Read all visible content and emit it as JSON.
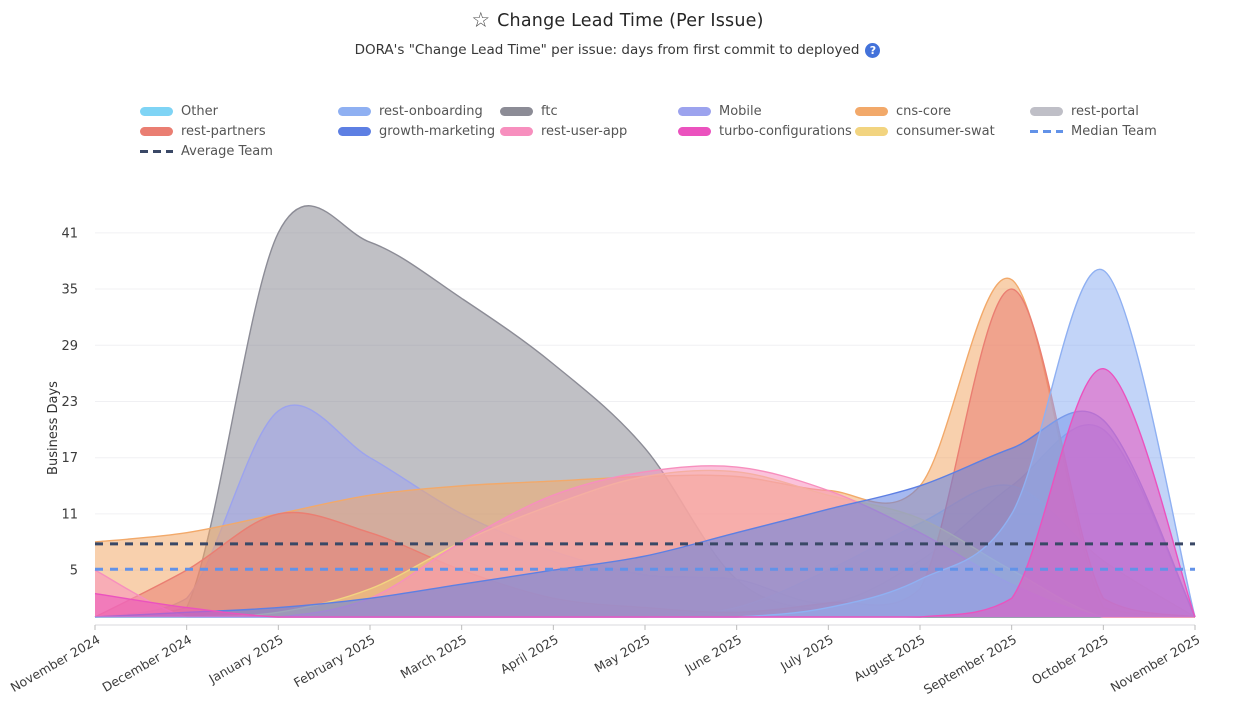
{
  "header": {
    "star_icon": "☆",
    "title": "Change Lead Time (Per Issue)",
    "subtitle": "DORA's \"Change Lead Time\" per issue: days from first commit to deployed",
    "help_icon": "?"
  },
  "legend": {
    "items": [
      {
        "label": "Other",
        "color": "#7FD4F5",
        "marker": "swatch"
      },
      {
        "label": "rest-onboarding",
        "color": "#8FB0F2",
        "marker": "swatch"
      },
      {
        "label": "ftc",
        "color": "#8C8C96",
        "marker": "swatch"
      },
      {
        "label": "Mobile",
        "color": "#9CA3EE",
        "marker": "swatch"
      },
      {
        "label": "cns-core",
        "color": "#F2A96A",
        "marker": "swatch"
      },
      {
        "label": "rest-portal",
        "color": "#BFBFC7",
        "marker": "swatch"
      },
      {
        "label": "rest-partners",
        "color": "#EA7E72",
        "marker": "swatch"
      },
      {
        "label": "growth-marketing",
        "color": "#5D7FE3",
        "marker": "swatch"
      },
      {
        "label": "rest-user-app",
        "color": "#F78FBE",
        "marker": "swatch"
      },
      {
        "label": "turbo-configurations",
        "color": "#EB52BE",
        "marker": "swatch"
      },
      {
        "label": "consumer-swat",
        "color": "#F2D480",
        "marker": "swatch"
      },
      {
        "label": "Median Team",
        "color": "#6292E8",
        "marker": "dashes"
      },
      {
        "label": "Average Team",
        "color": "#3A4866",
        "marker": "dashes"
      }
    ]
  },
  "chart_data": {
    "type": "area",
    "title": "Change Lead Time (Per Issue)",
    "xlabel": "",
    "ylabel": "Business Days",
    "x_categories": [
      "November 2024",
      "December 2024",
      "January 2025",
      "February 2025",
      "March 2025",
      "April 2025",
      "May 2025",
      "June 2025",
      "July 2025",
      "August 2025",
      "September 2025",
      "October 2025",
      "November 2025"
    ],
    "yticks": [
      5,
      11,
      17,
      23,
      29,
      35,
      41
    ],
    "ylim": [
      0,
      43.5
    ],
    "grid": true,
    "legend_position": "top",
    "series": [
      {
        "name": "Other",
        "color": "#7FD4F5",
        "values": [
          0,
          0,
          0,
          0,
          0,
          0,
          0,
          0,
          0,
          0,
          0,
          0,
          0
        ]
      },
      {
        "name": "rest-onboarding",
        "color": "#8FB0F2",
        "values": [
          0,
          0,
          0,
          0,
          0,
          0,
          0,
          0,
          1,
          4,
          11,
          37,
          0
        ]
      },
      {
        "name": "ftc",
        "color": "#8C8C96",
        "values": [
          0,
          1,
          41,
          40,
          34,
          27,
          18,
          4,
          0.5,
          0,
          0,
          0,
          0
        ]
      },
      {
        "name": "Mobile",
        "color": "#9CA3EE",
        "values": [
          0,
          2,
          22,
          17,
          11,
          7,
          4.5,
          4,
          1.5,
          6,
          14,
          20,
          0
        ]
      },
      {
        "name": "cns-core",
        "color": "#F2A96A",
        "values": [
          8,
          9,
          11,
          13,
          14,
          14.5,
          15,
          15,
          13.5,
          14,
          36,
          1,
          0
        ]
      },
      {
        "name": "rest-portal",
        "color": "#BFBFC7",
        "values": [
          0,
          0,
          0,
          0,
          0,
          0,
          0,
          1,
          5,
          10,
          14,
          6,
          0
        ]
      },
      {
        "name": "rest-partners",
        "color": "#EA7E72",
        "values": [
          0,
          5,
          11,
          9,
          5,
          2,
          1,
          0.5,
          1.5,
          3,
          35,
          2,
          0
        ]
      },
      {
        "name": "growth-marketing",
        "color": "#5D7FE3",
        "values": [
          0,
          0.5,
          1,
          2,
          3.5,
          5,
          6.5,
          9,
          11.5,
          14,
          18,
          21,
          0
        ]
      },
      {
        "name": "rest-user-app",
        "color": "#F78FBE",
        "values": [
          5,
          0,
          0,
          2,
          8,
          13,
          15.5,
          16,
          13.5,
          9,
          3.5,
          0,
          0
        ]
      },
      {
        "name": "turbo-configurations",
        "color": "#EB52BE",
        "values": [
          2.5,
          1,
          0,
          0,
          0,
          0,
          0,
          0,
          0,
          0,
          2,
          26.5,
          0
        ]
      },
      {
        "name": "consumer-swat",
        "color": "#F2D480",
        "values": [
          0,
          0,
          0.5,
          3,
          8,
          12,
          15,
          15.5,
          13,
          10.5,
          5,
          0,
          0
        ]
      }
    ],
    "reference_lines": [
      {
        "name": "Median Team",
        "value": 5.1,
        "color": "#6292E8",
        "style": "dashed"
      },
      {
        "name": "Average Team",
        "value": 7.8,
        "color": "#3A4866",
        "style": "dashed"
      }
    ]
  }
}
